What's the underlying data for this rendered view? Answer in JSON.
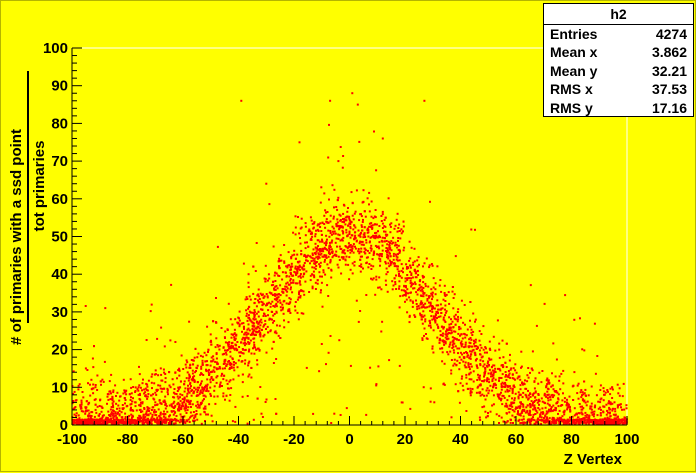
{
  "stats": {
    "title": "h2",
    "rows": [
      {
        "label": "Entries",
        "value": "4274"
      },
      {
        "label": "Mean x",
        "value": "3.862"
      },
      {
        "label": "Mean y",
        "value": "32.21"
      },
      {
        "label": "RMS x",
        "value": "37.53"
      },
      {
        "label": "RMS y",
        "value": "17.16"
      }
    ]
  },
  "chart_data": {
    "type": "scatter",
    "title": "h2",
    "xlabel": "Z Vertex",
    "ylabel_numerator": "# of primaries with a ssd point",
    "ylabel_denominator": "tot primaries",
    "xlim": [
      -100,
      100
    ],
    "ylim": [
      0,
      100
    ],
    "x_ticks": [
      "-100",
      "-80",
      "-60",
      "-40",
      "-20",
      "0",
      "20",
      "40",
      "60",
      "80",
      "100"
    ],
    "y_ticks": [
      "0",
      "10",
      "20",
      "30",
      "40",
      "50",
      "60",
      "70",
      "80",
      "90",
      "100"
    ],
    "grid": false,
    "marker_color": "#ff0000",
    "background_color": "#ffff00",
    "frame_color": "#ffffff",
    "points": {
      "distribution": "gaussian-profile",
      "count": 4274,
      "center_x": 0,
      "peak_y": 50,
      "sigma_x": 37.5,
      "y_spread": 5,
      "outlier_points": [
        [
          -39,
          86
        ],
        [
          -7,
          86
        ],
        [
          1,
          88
        ],
        [
          27,
          86
        ],
        [
          3,
          85
        ],
        [
          -88,
          31
        ],
        [
          -4,
          70
        ],
        [
          -30,
          64
        ],
        [
          -18,
          75
        ],
        [
          12,
          76
        ],
        [
          -95,
          15
        ],
        [
          -76,
          10
        ],
        [
          92,
          8
        ],
        [
          -68,
          15
        ]
      ]
    }
  }
}
